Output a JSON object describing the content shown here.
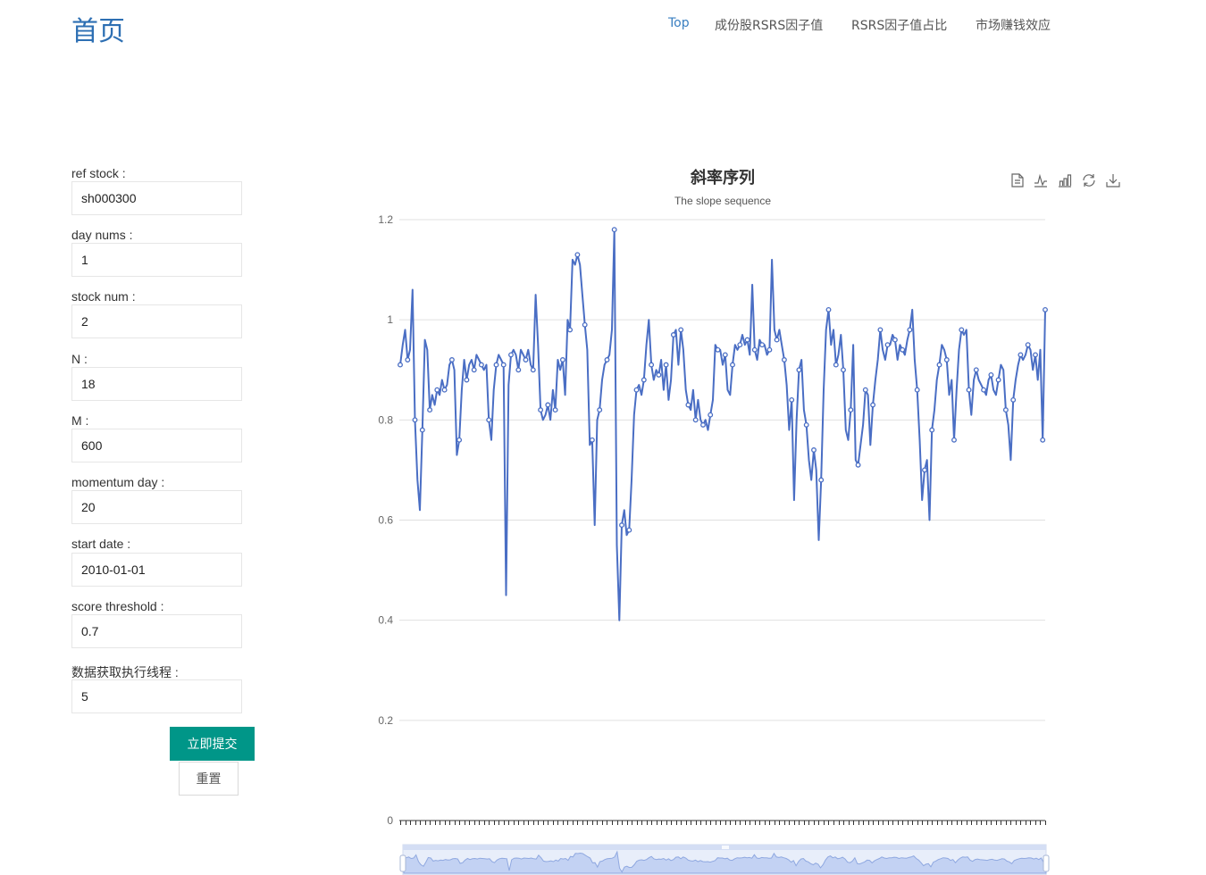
{
  "header": {
    "title": "首页",
    "nav": [
      {
        "label": "Top",
        "active": true
      },
      {
        "label": "成份股RSRS因子值",
        "active": false
      },
      {
        "label": "RSRS因子值占比",
        "active": false
      },
      {
        "label": "市场赚钱效应",
        "active": false
      }
    ]
  },
  "form": {
    "fields": [
      {
        "label": "ref stock :",
        "value": "sh000300"
      },
      {
        "label": "day nums :",
        "value": "1"
      },
      {
        "label": "stock num :",
        "value": "2"
      },
      {
        "label": "N :",
        "value": "18"
      },
      {
        "label": "M :",
        "value": "600"
      },
      {
        "label": "momentum day :",
        "value": "20"
      },
      {
        "label": "start date :",
        "value": "2010-01-01"
      },
      {
        "label": "score threshold :",
        "value": "0.7"
      },
      {
        "label": "数据获取执行线程 :",
        "value": "5"
      }
    ],
    "submit_label": "立即提交",
    "reset_label": "重置"
  },
  "toolbar": {
    "icons": [
      "data-view-icon",
      "line-chart-icon",
      "bar-chart-icon",
      "restore-icon",
      "save-image-icon"
    ]
  },
  "chart_data": {
    "type": "line",
    "title": "斜率序列",
    "subtitle": "The slope sequence",
    "ylim": [
      0,
      1.2
    ],
    "yticks": [
      "0",
      "0.2",
      "0.4",
      "0.6",
      "0.8",
      "1",
      "1.2"
    ],
    "grid": true,
    "datazoom": true,
    "line_color": "#4a6ec4",
    "series": [
      {
        "values": [
          0.91,
          0.95,
          0.98,
          0.92,
          0.94,
          1.06,
          0.8,
          0.68,
          0.62,
          0.78,
          0.96,
          0.94,
          0.82,
          0.85,
          0.83,
          0.86,
          0.85,
          0.88,
          0.86,
          0.87,
          0.91,
          0.92,
          0.9,
          0.73,
          0.76,
          0.86,
          0.92,
          0.88,
          0.91,
          0.92,
          0.9,
          0.93,
          0.92,
          0.91,
          0.9,
          0.91,
          0.8,
          0.76,
          0.86,
          0.91,
          0.93,
          0.92,
          0.91,
          0.45,
          0.87,
          0.93,
          0.94,
          0.93,
          0.9,
          0.94,
          0.93,
          0.92,
          0.94,
          0.91,
          0.9,
          1.05,
          0.95,
          0.82,
          0.8,
          0.81,
          0.83,
          0.8,
          0.86,
          0.82,
          0.92,
          0.9,
          0.92,
          0.85,
          1.0,
          0.98,
          1.12,
          1.11,
          1.13,
          1.11,
          1.05,
          0.99,
          0.94,
          0.75,
          0.76,
          0.59,
          0.8,
          0.82,
          0.88,
          0.91,
          0.92,
          0.93,
          0.98,
          1.18,
          0.55,
          0.4,
          0.59,
          0.62,
          0.57,
          0.58,
          0.68,
          0.81,
          0.86,
          0.87,
          0.85,
          0.88,
          0.95,
          1.0,
          0.91,
          0.88,
          0.9,
          0.89,
          0.92,
          0.86,
          0.91,
          0.84,
          0.88,
          0.97,
          0.98,
          0.91,
          0.98,
          0.94,
          0.86,
          0.83,
          0.82,
          0.86,
          0.8,
          0.84,
          0.8,
          0.79,
          0.8,
          0.78,
          0.81,
          0.84,
          0.95,
          0.94,
          0.94,
          0.91,
          0.93,
          0.86,
          0.85,
          0.91,
          0.95,
          0.94,
          0.95,
          0.97,
          0.95,
          0.96,
          0.93,
          1.07,
          0.94,
          0.92,
          0.96,
          0.95,
          0.95,
          0.93,
          0.94,
          1.12,
          0.98,
          0.96,
          0.98,
          0.95,
          0.92,
          0.87,
          0.78,
          0.84,
          0.64,
          0.8,
          0.9,
          0.92,
          0.82,
          0.79,
          0.72,
          0.68,
          0.74,
          0.7,
          0.56,
          0.68,
          0.86,
          0.98,
          1.02,
          0.95,
          0.98,
          0.91,
          0.93,
          0.97,
          0.9,
          0.78,
          0.76,
          0.82,
          0.95,
          0.72,
          0.71,
          0.75,
          0.79,
          0.86,
          0.85,
          0.75,
          0.83,
          0.88,
          0.92,
          0.98,
          0.94,
          0.92,
          0.95,
          0.95,
          0.97,
          0.96,
          0.92,
          0.95,
          0.94,
          0.93,
          0.96,
          0.98,
          1.02,
          0.92,
          0.86,
          0.76,
          0.64,
          0.7,
          0.72,
          0.6,
          0.78,
          0.82,
          0.88,
          0.91,
          0.95,
          0.94,
          0.92,
          0.85,
          0.88,
          0.76,
          0.86,
          0.94,
          0.98,
          0.97,
          0.98,
          0.86,
          0.81,
          0.88,
          0.9,
          0.88,
          0.87,
          0.86,
          0.85,
          0.88,
          0.89,
          0.86,
          0.85,
          0.88,
          0.91,
          0.9,
          0.82,
          0.79,
          0.72,
          0.84,
          0.88,
          0.91,
          0.93,
          0.92,
          0.93,
          0.95,
          0.94,
          0.9,
          0.93,
          0.88,
          0.94,
          0.76,
          1.02
        ]
      }
    ]
  }
}
